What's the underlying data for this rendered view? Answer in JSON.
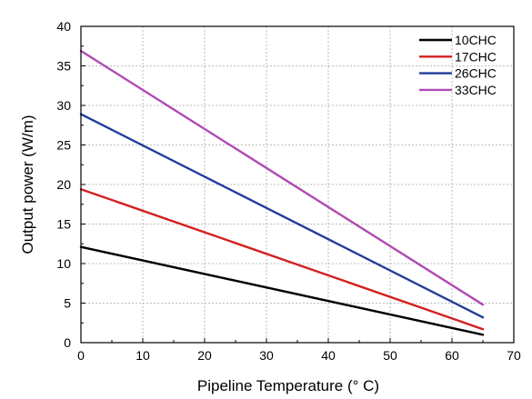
{
  "chart_data": {
    "type": "line",
    "title": "",
    "xlabel": "Pipeline Temperature (°  C)",
    "ylabel": "Output power (W/m)",
    "xlim": [
      0,
      70
    ],
    "ylim": [
      0,
      40
    ],
    "xticks": [
      0,
      10,
      20,
      30,
      40,
      50,
      60,
      70
    ],
    "yticks": [
      0,
      5,
      10,
      15,
      20,
      25,
      30,
      35,
      40
    ],
    "grid": true,
    "legend_position": "top-right",
    "x": [
      0,
      65
    ],
    "series": [
      {
        "name": "10CHC",
        "color": "#000000",
        "values": [
          12.1,
          1.0
        ]
      },
      {
        "name": "17CHC",
        "color": "#d42020",
        "values": [
          19.4,
          1.7
        ]
      },
      {
        "name": "26CHC",
        "color": "#1f3d9c",
        "values": [
          28.9,
          3.2
        ]
      },
      {
        "name": "33CHC",
        "color": "#b04ab3",
        "values": [
          36.9,
          4.8
        ]
      }
    ]
  }
}
